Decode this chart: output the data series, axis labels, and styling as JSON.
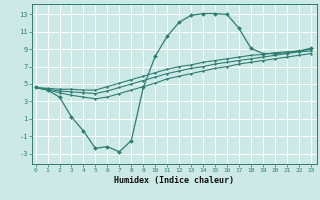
{
  "xlabel": "Humidex (Indice chaleur)",
  "bg_color": "#cce9e5",
  "grid_color": "#ffffff",
  "line_color": "#2e7d72",
  "x_ticks": [
    0,
    1,
    2,
    3,
    4,
    5,
    6,
    7,
    8,
    9,
    10,
    11,
    12,
    13,
    14,
    15,
    16,
    17,
    18,
    19,
    20,
    21,
    22,
    23
  ],
  "y_ticks": [
    -3,
    -1,
    1,
    3,
    5,
    7,
    9,
    11,
    13
  ],
  "ylim": [
    -4.2,
    14.2
  ],
  "xlim": [
    -0.3,
    23.5
  ],
  "line1_x": [
    0,
    1,
    2,
    3,
    4,
    5,
    6,
    7,
    8,
    9,
    10,
    11,
    12,
    13,
    14,
    15,
    16,
    17,
    18,
    19,
    20,
    21,
    22,
    23
  ],
  "line1_y": [
    4.6,
    4.3,
    3.5,
    1.2,
    -0.4,
    -2.4,
    -2.2,
    -2.8,
    -1.5,
    4.6,
    8.2,
    10.5,
    12.1,
    12.9,
    13.1,
    13.1,
    13.0,
    11.4,
    9.1,
    8.5,
    8.5,
    8.6,
    8.8,
    9.1
  ],
  "line2_x": [
    0,
    1,
    2,
    3,
    4,
    5,
    6,
    7,
    8,
    9,
    10,
    11,
    12,
    13,
    14,
    15,
    16,
    17,
    18,
    19,
    20,
    21,
    22,
    23
  ],
  "line2_y": [
    4.6,
    4.5,
    4.4,
    4.4,
    4.3,
    4.3,
    4.7,
    5.1,
    5.5,
    5.9,
    6.3,
    6.7,
    7.0,
    7.2,
    7.5,
    7.7,
    7.9,
    8.1,
    8.3,
    8.4,
    8.6,
    8.7,
    8.8,
    9.0
  ],
  "line3_x": [
    0,
    1,
    2,
    3,
    4,
    5,
    6,
    7,
    8,
    9,
    10,
    11,
    12,
    13,
    14,
    15,
    16,
    17,
    18,
    19,
    20,
    21,
    22,
    23
  ],
  "line3_y": [
    4.6,
    4.4,
    4.2,
    4.1,
    4.0,
    3.9,
    4.2,
    4.6,
    5.0,
    5.4,
    5.8,
    6.2,
    6.5,
    6.8,
    7.0,
    7.3,
    7.5,
    7.7,
    7.9,
    8.1,
    8.3,
    8.5,
    8.7,
    8.8
  ],
  "line4_x": [
    0,
    1,
    2,
    3,
    4,
    5,
    6,
    7,
    8,
    9,
    10,
    11,
    12,
    13,
    14,
    15,
    16,
    17,
    18,
    19,
    20,
    21,
    22,
    23
  ],
  "line4_y": [
    4.6,
    4.3,
    4.0,
    3.7,
    3.5,
    3.3,
    3.5,
    3.9,
    4.3,
    4.7,
    5.1,
    5.6,
    5.9,
    6.2,
    6.5,
    6.8,
    7.0,
    7.3,
    7.5,
    7.7,
    7.9,
    8.1,
    8.3,
    8.5
  ]
}
